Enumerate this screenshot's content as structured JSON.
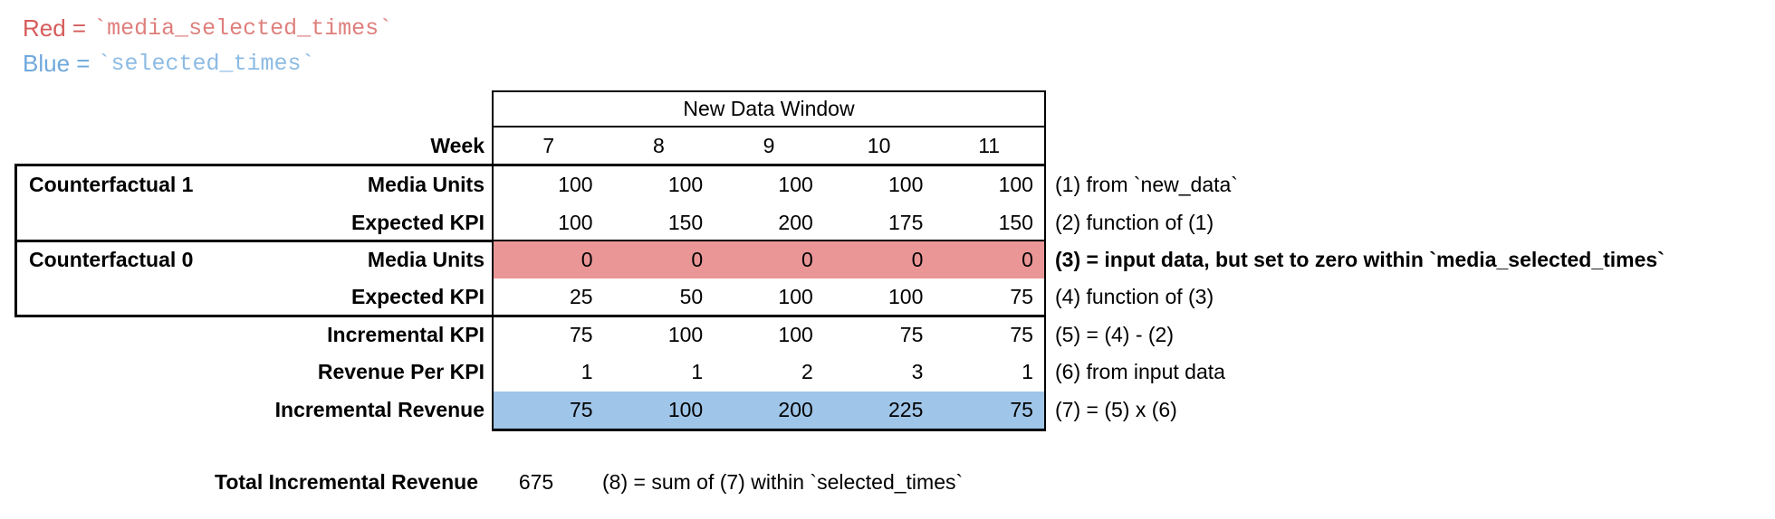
{
  "legend": {
    "red_label": "Red =",
    "red_code": "`media_selected_times`",
    "red_color": "#d65c5a",
    "blue_label": "Blue =",
    "blue_code": "`selected_times`",
    "blue_color": "#6fa8dc"
  },
  "table": {
    "header": "New Data Window",
    "week_label": "Week",
    "weeks": [
      "7",
      "8",
      "9",
      "10",
      "11"
    ],
    "highlight_red": "#ea9696",
    "highlight_blue": "#9fc5e8",
    "rows": [
      {
        "group": "Counterfactual 1",
        "label": "Media Units",
        "values": [
          "100",
          "100",
          "100",
          "100",
          "100"
        ],
        "annotation": "(1) from `new_data`"
      },
      {
        "group": "",
        "label": "Expected KPI",
        "values": [
          "100",
          "150",
          "200",
          "175",
          "150"
        ],
        "annotation": "(2) function of (1)"
      },
      {
        "group": "Counterfactual 0",
        "label": "Media Units",
        "values": [
          "0",
          "0",
          "0",
          "0",
          "0"
        ],
        "annotation": "(3) = input data, but set to zero within `media_selected_times`"
      },
      {
        "group": "",
        "label": "Expected KPI",
        "values": [
          "25",
          "50",
          "100",
          "100",
          "75"
        ],
        "annotation": "(4) function of (3)"
      },
      {
        "group": "",
        "label": "Incremental KPI",
        "values": [
          "75",
          "100",
          "100",
          "75",
          "75"
        ],
        "annotation": "(5) = (4) - (2)"
      },
      {
        "group": "",
        "label": "Revenue Per KPI",
        "values": [
          "1",
          "1",
          "2",
          "3",
          "1"
        ],
        "annotation": "(6) from input data"
      },
      {
        "group": "",
        "label": "Incremental Revenue",
        "values": [
          "75",
          "100",
          "200",
          "225",
          "75"
        ],
        "annotation": "(7) = (5) x (6)"
      }
    ]
  },
  "total": {
    "label": "Total Incremental Revenue",
    "value": "675",
    "annotation": "(8) = sum of (7) within `selected_times`"
  }
}
